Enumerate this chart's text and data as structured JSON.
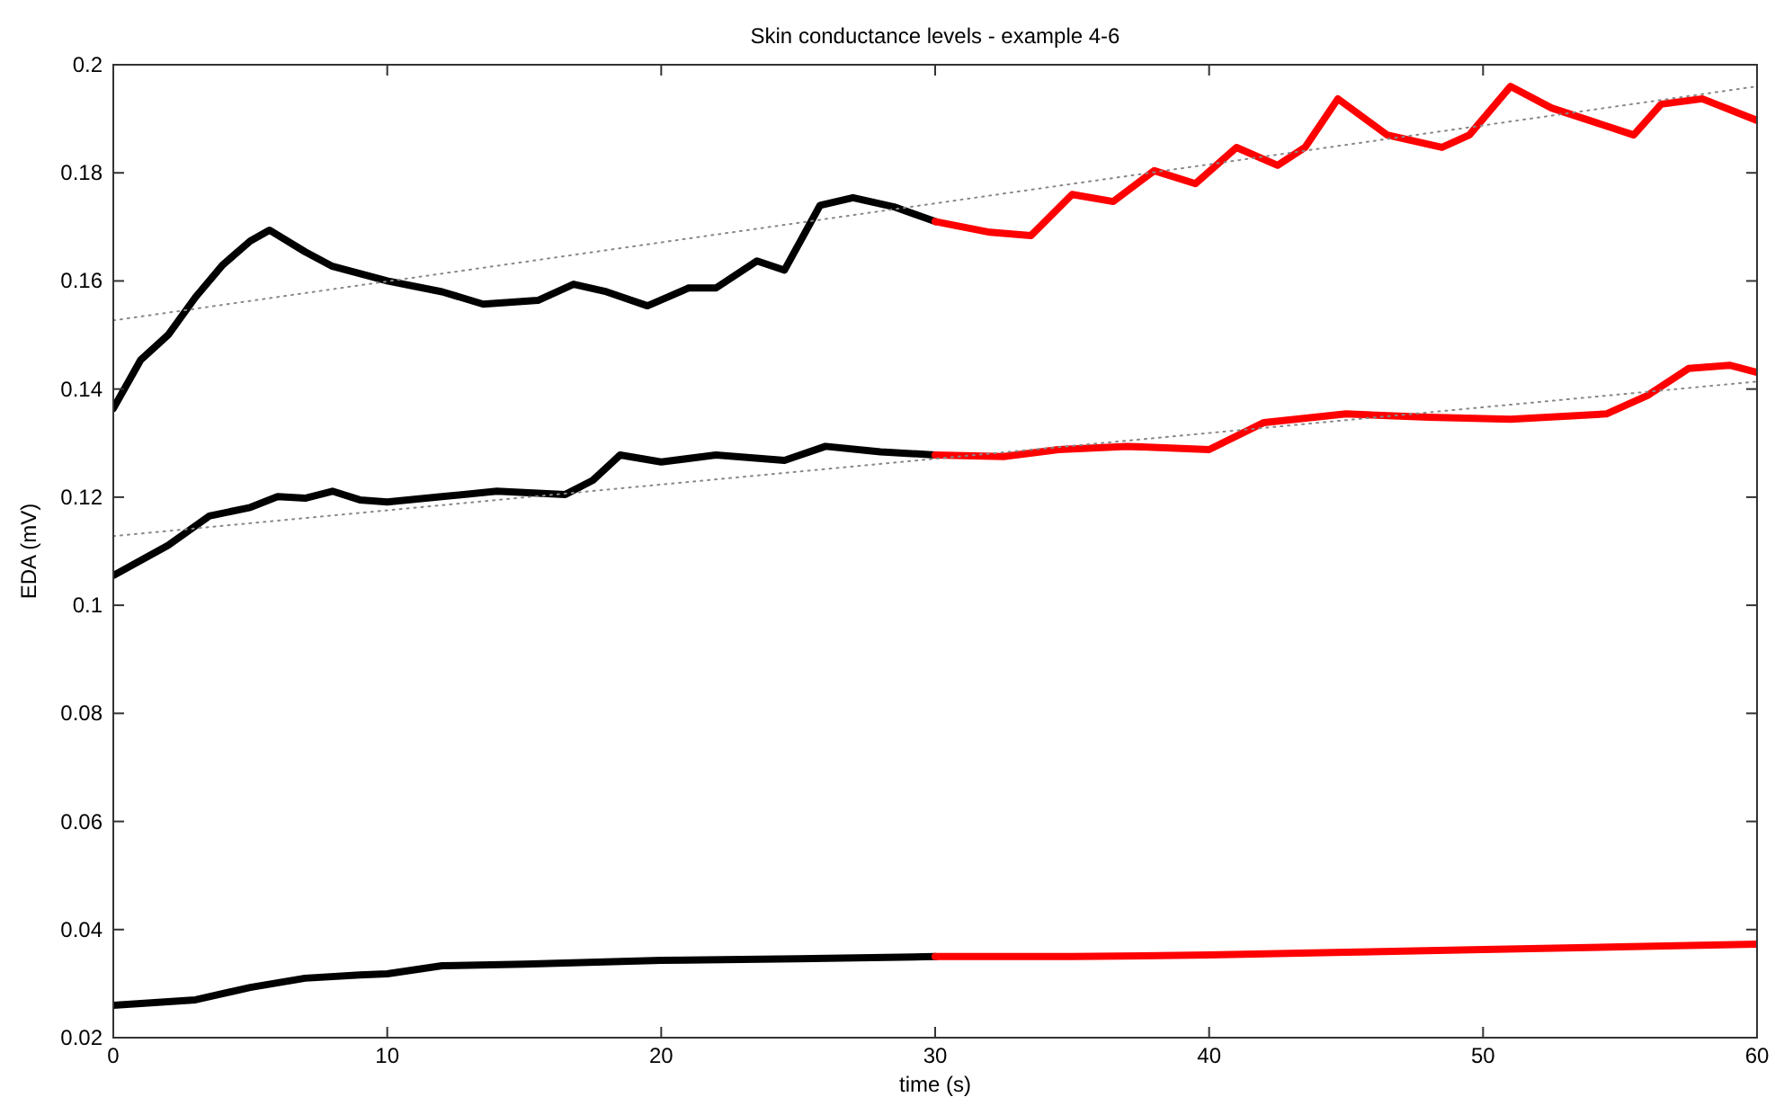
{
  "chart_data": {
    "type": "line",
    "title": "Skin conductance levels - example 4-6",
    "xlabel": "time (s)",
    "ylabel": "EDA (mV)",
    "xlim": [
      0,
      60
    ],
    "ylim": [
      0.02,
      0.2
    ],
    "xticks": [
      0,
      10,
      20,
      30,
      40,
      50,
      60
    ],
    "yticks": [
      0.02,
      0.04,
      0.06,
      0.08,
      0.1,
      0.12,
      0.14,
      0.16,
      0.18,
      0.2
    ],
    "series": [
      {
        "color": "#000000",
        "x": [
          0,
          1,
          2,
          3,
          4,
          5,
          5.7,
          7,
          8,
          10,
          12,
          13.5,
          15.5,
          16.8,
          18,
          19.5,
          21,
          22,
          23.5,
          24.5,
          25.8,
          27,
          28.5,
          30
        ],
        "values": [
          0.1364,
          0.1454,
          0.15,
          0.157,
          0.163,
          0.1674,
          0.1694,
          0.1654,
          0.1627,
          0.16,
          0.158,
          0.1557,
          0.1564,
          0.1594,
          0.158,
          0.1554,
          0.1587,
          0.1587,
          0.1637,
          0.162,
          0.174,
          0.1754,
          0.1737,
          0.171
        ]
      },
      {
        "color": "#ff0000",
        "x": [
          30,
          31,
          32,
          33.5,
          35,
          36.5,
          38,
          39.5,
          41,
          42.5,
          43.5,
          44.7,
          46.5,
          48.5,
          49.5,
          51,
          52.5,
          55.5,
          56.5,
          58,
          60
        ],
        "values": [
          0.171,
          0.17,
          0.169,
          0.1684,
          0.176,
          0.1747,
          0.1804,
          0.178,
          0.1847,
          0.1814,
          0.1847,
          0.1937,
          0.187,
          0.1847,
          0.187,
          0.196,
          0.192,
          0.187,
          0.1927,
          0.1937,
          0.1897
        ]
      },
      {
        "color": "#000000",
        "x": [
          0,
          2,
          3.5,
          5,
          6,
          7,
          8,
          9,
          10,
          12,
          14,
          16.5,
          17.5,
          18.5,
          20,
          22,
          24.5,
          26,
          28,
          30
        ],
        "values": [
          0.1055,
          0.1111,
          0.1165,
          0.1181,
          0.1201,
          0.1198,
          0.1211,
          0.1195,
          0.1191,
          0.1201,
          0.1211,
          0.1205,
          0.1231,
          0.1278,
          0.1265,
          0.1278,
          0.1268,
          0.1294,
          0.1284,
          0.1278
        ]
      },
      {
        "color": "#ff0000",
        "x": [
          30,
          32.5,
          34.5,
          37,
          40,
          42,
          45,
          48,
          51,
          54.5,
          56,
          57.5,
          59,
          60
        ],
        "values": [
          0.1278,
          0.1275,
          0.1288,
          0.1294,
          0.1288,
          0.1338,
          0.1354,
          0.1348,
          0.1344,
          0.1354,
          0.1388,
          0.1438,
          0.1444,
          0.1431
        ]
      },
      {
        "color": "#000000",
        "x": [
          0,
          3,
          5,
          7,
          9,
          10,
          12,
          15,
          20,
          25,
          30
        ],
        "values": [
          0.026,
          0.027,
          0.0293,
          0.031,
          0.0316,
          0.0318,
          0.0333,
          0.0336,
          0.0343,
          0.0346,
          0.035
        ]
      },
      {
        "color": "#ff0000",
        "x": [
          30,
          35,
          40,
          45,
          50,
          55,
          60
        ],
        "values": [
          0.035,
          0.035,
          0.0353,
          0.0358,
          0.0363,
          0.0368,
          0.0373
        ]
      },
      {
        "color": "#888888",
        "line_style": "dotted",
        "x": [
          0,
          60
        ],
        "values": [
          0.1527,
          0.196
        ]
      },
      {
        "color": "#888888",
        "line_style": "dotted",
        "x": [
          0,
          60
        ],
        "values": [
          0.1128,
          0.1414
        ]
      }
    ]
  }
}
